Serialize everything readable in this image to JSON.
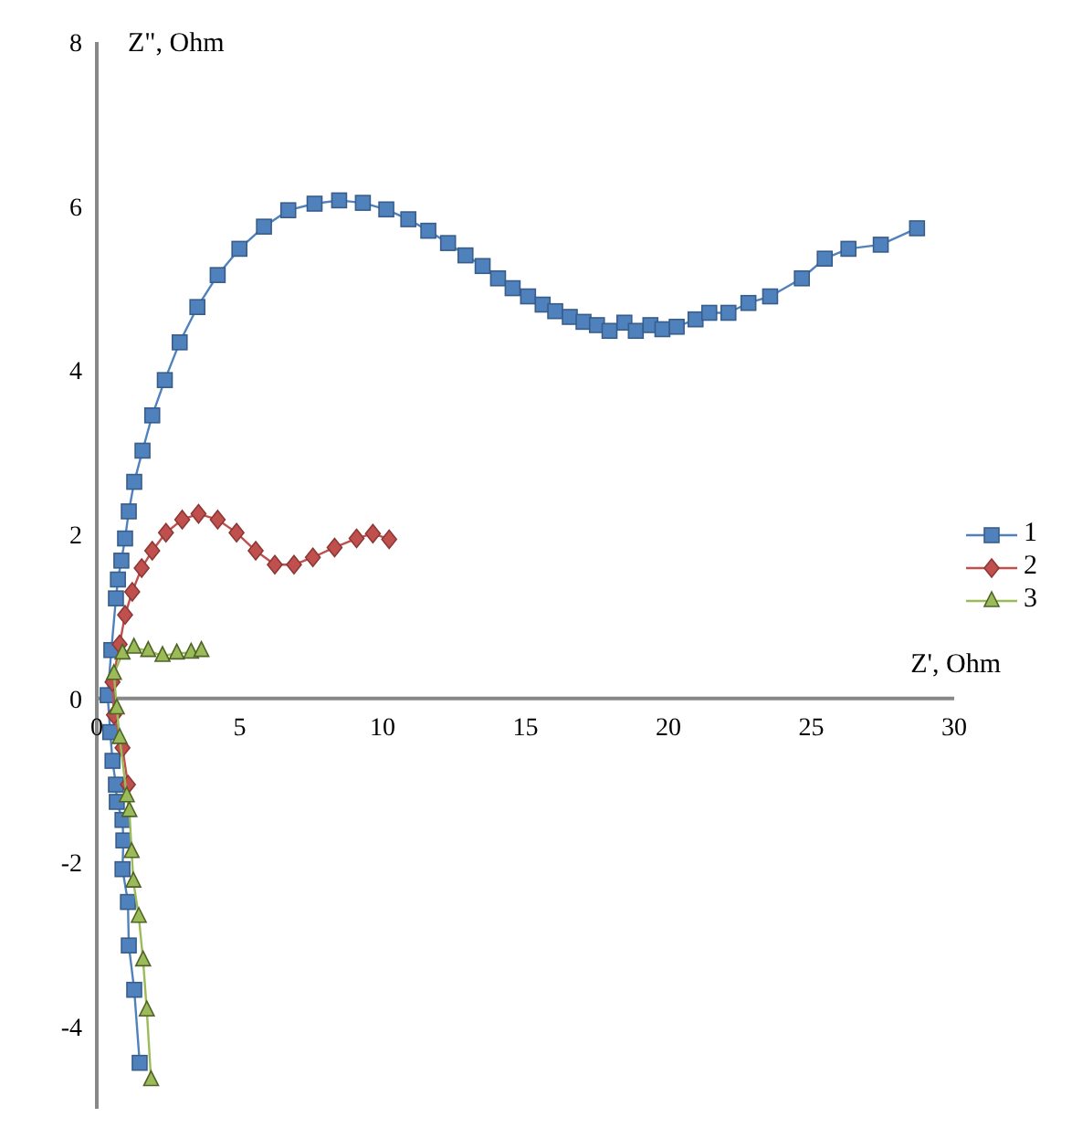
{
  "chart_data": {
    "type": "line",
    "xlabel": "Z', Ohm",
    "ylabel": "Z\", Ohm",
    "xlim": [
      0,
      30
    ],
    "xticks": [
      0,
      5,
      10,
      15,
      20,
      25,
      30
    ],
    "ylim": [
      -5,
      8
    ],
    "yticks": [
      -4,
      -2,
      0,
      2,
      4,
      6,
      8
    ],
    "grid": false,
    "legend": "right",
    "line_style": "solid",
    "series": [
      {
        "name": "1",
        "color": "#4f81bd",
        "marker": "square",
        "x": [
          1.5,
          1.31,
          1.12,
          1.09,
          0.9,
          0.93,
          0.9,
          0.7,
          0.67,
          0.55,
          0.47,
          0.38,
          0.51,
          0.67,
          0.74,
          0.86,
          0.99,
          1.12,
          1.31,
          1.6,
          1.94,
          2.38,
          2.9,
          3.52,
          4.23,
          4.99,
          5.85,
          6.7,
          7.62,
          8.48,
          9.31,
          10.13,
          10.9,
          11.6,
          12.29,
          12.9,
          13.5,
          14.04,
          14.55,
          15.09,
          15.6,
          16.04,
          16.55,
          17.03,
          17.5,
          17.94,
          18.46,
          18.86,
          19.37,
          19.79,
          20.29,
          20.95,
          21.43,
          22.1,
          22.8,
          23.56,
          24.67,
          25.47,
          26.3,
          27.43,
          28.7
        ],
        "values": [
          -4.44,
          -3.55,
          -3.01,
          -2.48,
          -2.08,
          -1.73,
          -1.48,
          -1.26,
          -1.05,
          -0.76,
          -0.41,
          0.04,
          0.59,
          1.22,
          1.45,
          1.68,
          1.95,
          2.28,
          2.64,
          3.02,
          3.45,
          3.88,
          4.34,
          4.77,
          5.16,
          5.48,
          5.75,
          5.95,
          6.03,
          6.07,
          6.04,
          5.96,
          5.84,
          5.7,
          5.55,
          5.4,
          5.27,
          5.12,
          5.0,
          4.9,
          4.8,
          4.72,
          4.65,
          4.59,
          4.55,
          4.48,
          4.58,
          4.48,
          4.55,
          4.5,
          4.53,
          4.62,
          4.7,
          4.7,
          4.82,
          4.9,
          5.12,
          5.36,
          5.48,
          5.53,
          5.73
        ]
      },
      {
        "name": "2",
        "color": "#c0504d",
        "marker": "diamond",
        "x": [
          1.09,
          0.9,
          0.6,
          0.55,
          0.8,
          0.99,
          1.24,
          1.57,
          1.94,
          2.42,
          2.99,
          3.56,
          4.23,
          4.89,
          5.56,
          6.23,
          6.9,
          7.56,
          8.32,
          9.09,
          9.66,
          10.23
        ],
        "values": [
          -1.05,
          -0.6,
          -0.2,
          0.2,
          0.66,
          1.02,
          1.3,
          1.59,
          1.8,
          2.02,
          2.18,
          2.25,
          2.18,
          2.02,
          1.8,
          1.63,
          1.63,
          1.72,
          1.84,
          1.95,
          2.01,
          1.94
        ]
      },
      {
        "name": "3",
        "color": "#9bbb59",
        "marker": "triangle",
        "x": [
          1.9,
          1.75,
          1.62,
          1.47,
          1.28,
          1.22,
          1.14,
          1.05,
          0.8,
          0.7,
          0.6,
          0.9,
          1.3,
          1.8,
          2.3,
          2.8,
          3.3,
          3.66
        ],
        "values": [
          -4.65,
          -3.8,
          -3.19,
          -2.66,
          -2.23,
          -1.87,
          -1.37,
          -1.19,
          -0.48,
          -0.12,
          0.3,
          0.55,
          0.62,
          0.58,
          0.52,
          0.55,
          0.56,
          0.58
        ]
      }
    ]
  }
}
